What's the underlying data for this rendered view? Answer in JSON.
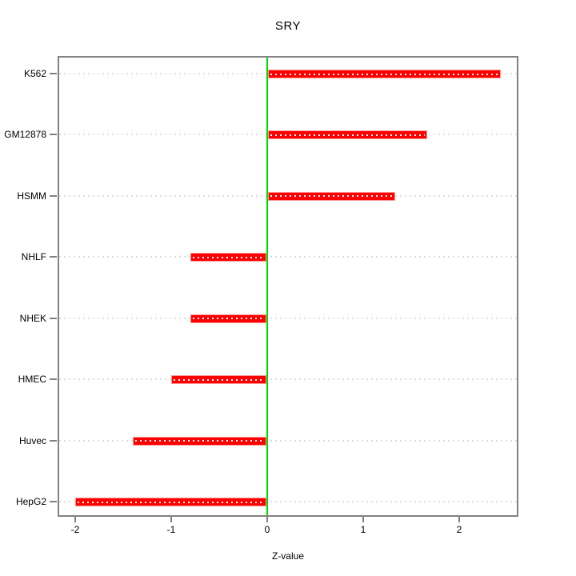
{
  "chart_data": {
    "type": "bar",
    "orientation": "horizontal",
    "title": "SRY",
    "xlabel": "Z-value",
    "ylabel": "",
    "categories": [
      "K562",
      "GM12878",
      "HSMM",
      "NHLF",
      "NHEK",
      "HMEC",
      "Huvec",
      "HepG2"
    ],
    "values": [
      2.43,
      1.67,
      1.33,
      -0.8,
      -0.8,
      -1.0,
      -1.4,
      -2.0
    ],
    "x_ticks": [
      -2,
      -1,
      0,
      1,
      2
    ],
    "x_tick_labels": [
      "-2",
      "-1",
      "0",
      "1",
      "2"
    ],
    "xlim": [
      -2.18,
      2.62
    ],
    "reference_line_x": 0,
    "grid": "horizontal dotted line per category",
    "legend": "none",
    "colors": {
      "bar_fill": "#ff0000",
      "bar_edge": "#ff9595",
      "bar_center_dots": "#ffffff",
      "reference_line": "#00dd00",
      "frame": "#828282",
      "gridline": "#dedede",
      "text": "#000000",
      "background": "#ffffff"
    }
  }
}
